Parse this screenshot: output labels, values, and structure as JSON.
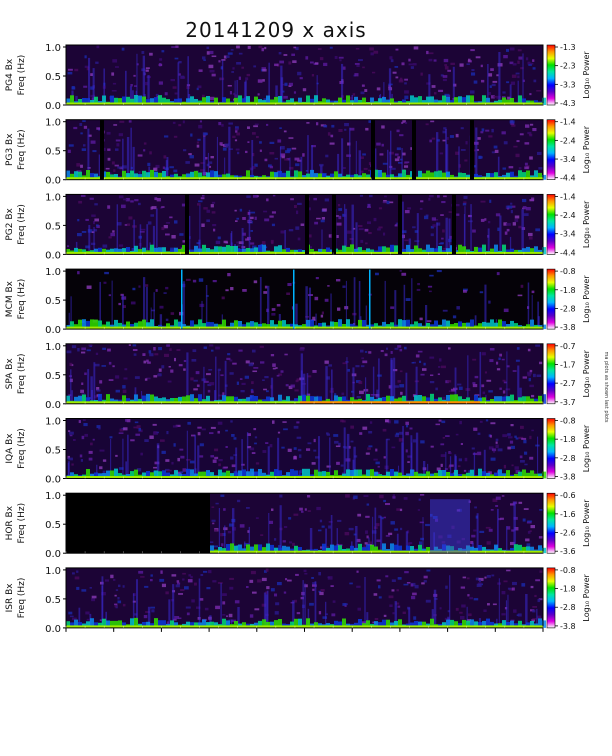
{
  "title": "20141209 x axis",
  "side_note": "ma plots as shown last plots",
  "chart_data": {
    "type": "heatmap",
    "title": "20141209 x axis",
    "ytick_labels": [
      "0.0",
      "0.5",
      "1.0"
    ],
    "ylim": [
      0,
      1.0
    ],
    "ylabel": "Freq (Hz)",
    "colorbar_label": "Log₁₀ Power",
    "colorscale": [
      "#ffffff",
      "#e000e0",
      "#5a00c8",
      "#0000ff",
      "#00b4ff",
      "#00e6a0",
      "#00e000",
      "#e6ff00",
      "#ff9600",
      "#ff0000"
    ],
    "panels": [
      {
        "station": "PG4 Bx",
        "ylabel": "Freq (Hz)",
        "cb_ticks": [
          "-1.3",
          "-2.3",
          "-3.3",
          "-4.3"
        ],
        "cb_range": [
          -4.3,
          -1.3
        ]
      },
      {
        "station": "PG3 Bx",
        "ylabel": "Freq (Hz)",
        "cb_ticks": [
          "-1.4",
          "-2.4",
          "-3.4",
          "-4.4"
        ],
        "cb_range": [
          -4.4,
          -1.4
        ]
      },
      {
        "station": "PG2 Bx",
        "ylabel": "Freq (Hz)",
        "cb_ticks": [
          "-1.4",
          "-2.4",
          "-3.4",
          "-4.4"
        ],
        "cb_range": [
          -4.4,
          -1.4
        ]
      },
      {
        "station": "MCM Bx",
        "ylabel": "Freq (Hz)",
        "cb_ticks": [
          "-0.8",
          "-1.8",
          "-2.8",
          "-3.8"
        ],
        "cb_range": [
          -3.8,
          -0.8
        ]
      },
      {
        "station": "SPA Bx",
        "ylabel": "Freq (Hz)",
        "cb_ticks": [
          "-0.7",
          "-1.7",
          "-2.7",
          "-3.7"
        ],
        "cb_range": [
          -3.7,
          -0.7
        ]
      },
      {
        "station": "IQA Bx",
        "ylabel": "Freq (Hz)",
        "cb_ticks": [
          "-0.8",
          "-1.8",
          "-2.8",
          "-3.8"
        ],
        "cb_range": [
          -3.8,
          -0.8
        ]
      },
      {
        "station": "HOR Bx",
        "ylabel": "Freq (Hz)",
        "cb_ticks": [
          "-0.6",
          "-1.6",
          "-2.6",
          "-3.6"
        ],
        "cb_range": [
          -3.6,
          -0.6
        ]
      },
      {
        "station": "ISR Bx",
        "ylabel": "Freq (Hz)",
        "cb_ticks": [
          "-0.8",
          "-1.8",
          "-2.8",
          "-3.8"
        ],
        "cb_range": [
          -3.8,
          -0.8
        ]
      }
    ]
  }
}
